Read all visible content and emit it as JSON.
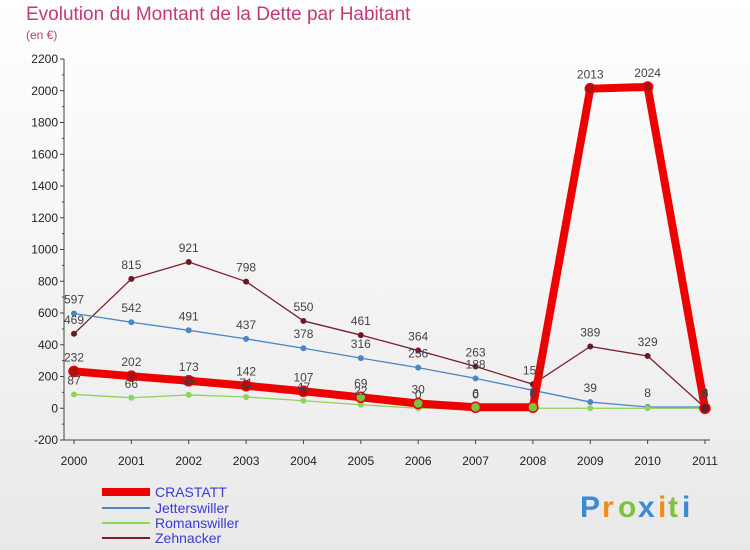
{
  "title": "Evolution du Montant de la Dette par Habitant",
  "subtitle": "(en €)",
  "brand": {
    "letters": [
      "P",
      "r",
      "o",
      "x",
      "i",
      "t",
      "i"
    ],
    "colors": [
      "#3a8ad6",
      "#f08c1c",
      "#7cc242",
      "#3a8ad6",
      "#f08c1c",
      "#7cc242",
      "#3a8ad6"
    ]
  },
  "chart_data": {
    "type": "line",
    "title": "Evolution du Montant de la Dette par Habitant",
    "ylabel": "(en €)",
    "x": [
      "2000",
      "2001",
      "2002",
      "2003",
      "2004",
      "2005",
      "2006",
      "2007",
      "2008",
      "2009",
      "2010",
      "2011"
    ],
    "ylim": [
      -200,
      2200
    ],
    "yticks": [
      -200,
      0,
      200,
      400,
      600,
      800,
      1000,
      1200,
      1400,
      1600,
      1800,
      2000,
      2200
    ],
    "grid": false,
    "legend": "bottom-left",
    "series": [
      {
        "name": "CRASTATT",
        "color": "#ee0000",
        "values": [
          232,
          202,
          173,
          142,
          107,
          69,
          30,
          6,
          6,
          2013,
          2024,
          0
        ]
      },
      {
        "name": "Jetterswiller",
        "color": "#4a86c6",
        "values": [
          597,
          542,
          491,
          437,
          378,
          316,
          256,
          188,
          113,
          39,
          8,
          8
        ]
      },
      {
        "name": "Romanswiller",
        "color": "#8fd35a",
        "values": [
          87,
          66,
          84,
          71,
          47,
          22,
          0,
          0,
          0,
          0,
          0,
          0
        ]
      },
      {
        "name": "Zehnacker",
        "color": "#7a1f2a",
        "values": [
          469,
          815,
          921,
          798,
          550,
          461,
          364,
          263,
          151,
          389,
          329,
          3
        ]
      }
    ],
    "data_labels": [
      {
        "series": "CRASTATT",
        "labels": [
          "232",
          "202",
          "173",
          "142",
          "107",
          "69",
          "30",
          "6",
          "6",
          "2013",
          "2024",
          "0"
        ]
      },
      {
        "series": "Jetterswiller",
        "labels": [
          "597",
          "542",
          "491",
          "437",
          "378",
          "316",
          "256",
          "188",
          "",
          "39",
          "8",
          "8"
        ]
      },
      {
        "series": "Romanswiller",
        "labels": [
          "87",
          "66",
          "84",
          "71",
          "47",
          "22",
          "0",
          "0",
          "0",
          "",
          "",
          ""
        ]
      },
      {
        "series": "Zehnacker",
        "labels": [
          "469",
          "815",
          "921",
          "798",
          "550",
          "461",
          "364",
          "263",
          "151",
          "389",
          "329",
          "3"
        ]
      }
    ]
  }
}
